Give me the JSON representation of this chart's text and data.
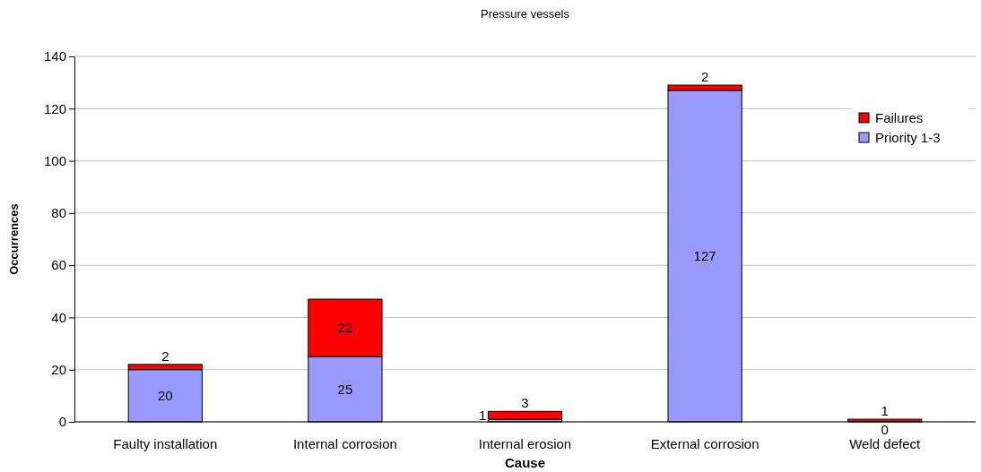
{
  "chart_data": {
    "type": "bar",
    "title": "Pressure vessels",
    "xlabel": "Cause",
    "ylabel": "Occurrences",
    "categories": [
      "Faulty installation",
      "Internal corrosion",
      "Internal erosion",
      "External corrosion",
      "Weld defect"
    ],
    "stacked": true,
    "data_labels": true,
    "legend": "top right",
    "grid": "y",
    "ylim": [
      0,
      140
    ],
    "yticks": [
      0,
      20,
      40,
      60,
      80,
      100,
      120,
      140
    ],
    "series": [
      {
        "name": "Priority 1-3",
        "color": "#9999ff",
        "values": [
          20,
          25,
          1,
          127,
          0
        ]
      },
      {
        "name": "Failures",
        "color": "#ff0000",
        "values": [
          2,
          22,
          3,
          2,
          1
        ]
      }
    ]
  }
}
